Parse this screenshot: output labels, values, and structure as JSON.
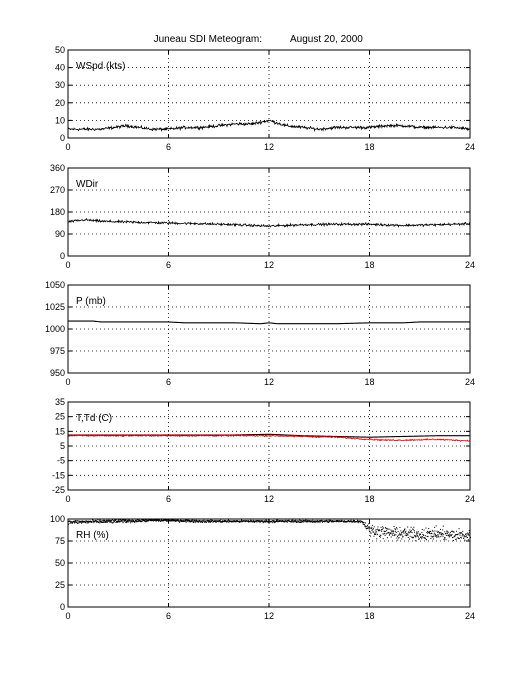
{
  "figure": {
    "title_left": "Juneau SDI Meteogram:",
    "title_right": "August 20, 2000"
  },
  "colors": {
    "axis": "#000000",
    "grid": "#000000",
    "temp": "#000000",
    "dewpoint": "#ff0000"
  },
  "chart_data": [
    {
      "type": "line",
      "label": "WSpd (kts)",
      "xlim": [
        0,
        24
      ],
      "xticks": [
        0,
        6,
        12,
        18,
        24
      ],
      "ylim": [
        0,
        50
      ],
      "yticks": [
        0,
        10,
        20,
        30,
        40,
        50
      ],
      "grid": true,
      "series": [
        {
          "color": "#000000",
          "style": "noisy-line",
          "x": [
            0,
            2,
            3.5,
            5,
            6,
            7,
            8,
            9,
            10,
            11,
            12,
            13,
            14,
            15,
            16,
            17,
            18,
            19,
            20,
            21,
            22,
            23,
            24
          ],
          "y": [
            5,
            5,
            7,
            5,
            5,
            6,
            6,
            7,
            8,
            8,
            10,
            7,
            6,
            5,
            6,
            6,
            6,
            7,
            7,
            6,
            6,
            6,
            5
          ],
          "noise": 1.2
        }
      ]
    },
    {
      "type": "line",
      "label": "WDir",
      "xlim": [
        0,
        24
      ],
      "xticks": [
        0,
        6,
        12,
        18,
        24
      ],
      "ylim": [
        0,
        360
      ],
      "yticks": [
        0,
        90,
        180,
        270,
        360
      ],
      "grid": true,
      "series": [
        {
          "color": "#000000",
          "style": "noisy-line",
          "x": [
            0,
            1,
            2,
            4,
            6,
            8,
            10,
            12,
            14,
            16,
            18,
            20,
            22,
            24
          ],
          "y": [
            140,
            148,
            142,
            138,
            135,
            132,
            128,
            122,
            128,
            130,
            130,
            125,
            128,
            132
          ],
          "noise": 7
        }
      ]
    },
    {
      "type": "line",
      "label": "P (mb)",
      "xlim": [
        0,
        24
      ],
      "xticks": [
        0,
        6,
        12,
        18,
        24
      ],
      "ylim": [
        950,
        1050
      ],
      "yticks": [
        950,
        975,
        1000,
        1025,
        1050
      ],
      "grid": true,
      "series": [
        {
          "color": "#000000",
          "style": "step-line",
          "x": [
            0,
            1.5,
            2,
            6,
            7,
            10,
            11.5,
            12,
            12.5,
            16,
            18,
            20,
            21,
            24
          ],
          "y": [
            1009,
            1009,
            1008,
            1008,
            1007,
            1007,
            1006,
            1007,
            1006,
            1006,
            1007,
            1007,
            1008,
            1008
          ]
        }
      ]
    },
    {
      "type": "line",
      "label": "T,Td (C)",
      "xlim": [
        0,
        24
      ],
      "xticks": [
        0,
        6,
        12,
        18,
        24
      ],
      "ylim": [
        -25,
        35
      ],
      "yticks": [
        -25,
        -15,
        -5,
        5,
        15,
        25,
        35
      ],
      "grid": true,
      "series": [
        {
          "color": "#000000",
          "style": "line",
          "x": [
            0,
            6,
            10,
            12,
            14,
            16,
            18,
            20,
            22,
            24
          ],
          "y": [
            12.5,
            12.5,
            12.5,
            13,
            12,
            11.5,
            11,
            11.5,
            12,
            12
          ]
        },
        {
          "color": "#ff0000",
          "style": "noisy-line",
          "x": [
            0,
            6,
            10,
            12,
            14,
            16,
            18,
            19,
            20,
            22,
            24
          ],
          "y": [
            12,
            12,
            12,
            12,
            11.5,
            11,
            9.5,
            9,
            9,
            9.5,
            8.5
          ],
          "noise": 0.7
        }
      ]
    },
    {
      "type": "scatter",
      "label": "RH (%)",
      "xlim": [
        0,
        24
      ],
      "xticks": [
        0,
        6,
        12,
        18,
        24
      ],
      "ylim": [
        0,
        100
      ],
      "yticks": [
        0,
        25,
        50,
        75,
        100
      ],
      "grid": true,
      "series": [
        {
          "color": "#000000",
          "style": "dots",
          "x": [
            0,
            3,
            5,
            6,
            8,
            12,
            17.5,
            18,
            19,
            20,
            21,
            22,
            23,
            24
          ],
          "y": [
            97,
            98,
            99,
            99,
            98,
            98,
            98,
            88,
            85,
            84,
            83,
            84,
            82,
            82
          ],
          "spread": [
            3,
            3,
            2,
            2,
            2,
            2,
            2,
            9,
            10,
            10,
            10,
            10,
            10,
            10
          ]
        }
      ]
    }
  ]
}
